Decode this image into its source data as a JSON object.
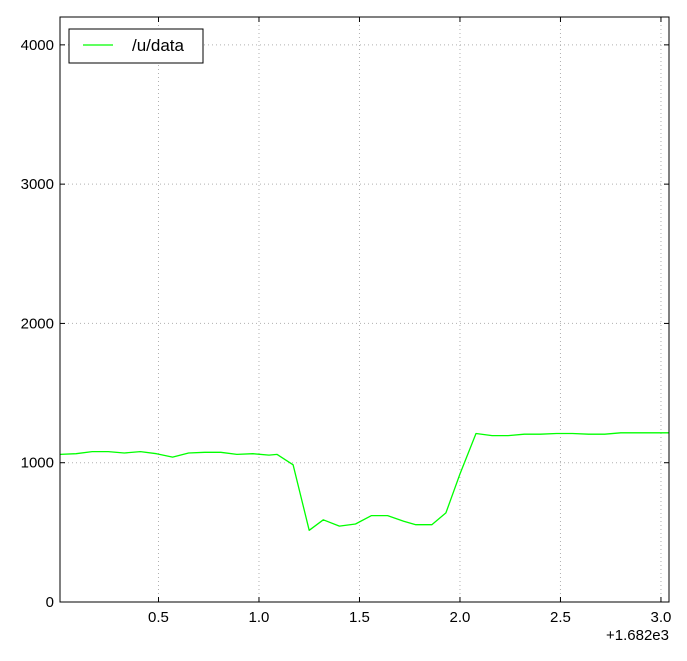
{
  "chart_data": {
    "type": "line",
    "title": "",
    "xlabel": "",
    "ylabel": "",
    "x_offset_label": "+1.682e3",
    "xlim": [
      0.01,
      3.04
    ],
    "ylim": [
      0,
      4200
    ],
    "x_ticks": [
      0.5,
      1.0,
      1.5,
      2.0,
      2.5,
      3.0
    ],
    "x_tick_labels": [
      "0.5",
      "1.0",
      "1.5",
      "2.0",
      "2.5",
      "3.0"
    ],
    "y_ticks": [
      0,
      1000,
      2000,
      3000,
      4000
    ],
    "y_tick_labels": [
      "0",
      "1000",
      "2000",
      "3000",
      "4000"
    ],
    "grid": true,
    "legend_position": "top-left",
    "series": [
      {
        "name": "/u/data",
        "color": "#00ff00",
        "x": [
          0.01,
          0.09,
          0.17,
          0.25,
          0.33,
          0.41,
          0.49,
          0.57,
          0.65,
          0.73,
          0.81,
          0.89,
          0.97,
          1.05,
          1.09,
          1.17,
          1.25,
          1.32,
          1.4,
          1.48,
          1.56,
          1.64,
          1.72,
          1.78,
          1.86,
          1.93,
          2.0,
          2.08,
          2.16,
          2.24,
          2.32,
          2.4,
          2.48,
          2.56,
          2.64,
          2.72,
          2.8,
          2.88,
          2.96,
          3.04
        ],
        "y": [
          1060,
          1065,
          1080,
          1080,
          1070,
          1080,
          1065,
          1040,
          1070,
          1075,
          1075,
          1060,
          1065,
          1055,
          1060,
          985,
          515,
          590,
          545,
          560,
          620,
          620,
          580,
          555,
          555,
          640,
          920,
          1210,
          1195,
          1195,
          1205,
          1205,
          1210,
          1210,
          1205,
          1205,
          1215,
          1215,
          1215,
          1215
        ]
      }
    ]
  }
}
